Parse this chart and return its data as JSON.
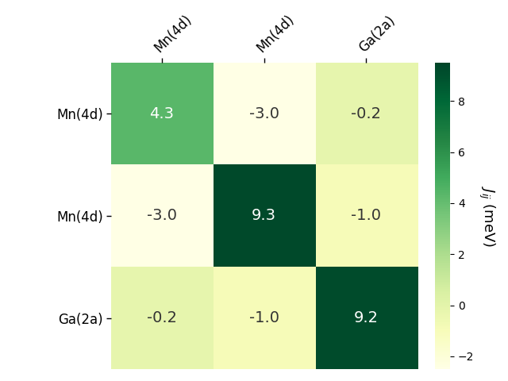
{
  "matrix": [
    [
      4.3,
      -3.0,
      -0.2
    ],
    [
      -3.0,
      9.3,
      -1.0
    ],
    [
      -0.2,
      -1.0,
      9.2
    ]
  ],
  "row_labels": [
    "Mn(4d)",
    "Mn(4d)",
    "Ga(2a)"
  ],
  "col_labels": [
    "Mn(4d)",
    "Mn(4d)",
    "Ga(2a)"
  ],
  "colorbar_label": "$J_{ij}$ (meV)",
  "vmin": -2.5,
  "vmax": 9.5,
  "cmap": "YlGn",
  "white_text_threshold": 3.0,
  "figsize": [
    6.4,
    4.8
  ],
  "dpi": 100,
  "cell_text_fontsize": 14,
  "tick_label_fontsize": 12,
  "cbar_label_fontsize": 13,
  "cbar_tick_fontsize": 10,
  "cbar_ticks": [
    -2,
    0,
    2,
    4,
    6,
    8
  ]
}
